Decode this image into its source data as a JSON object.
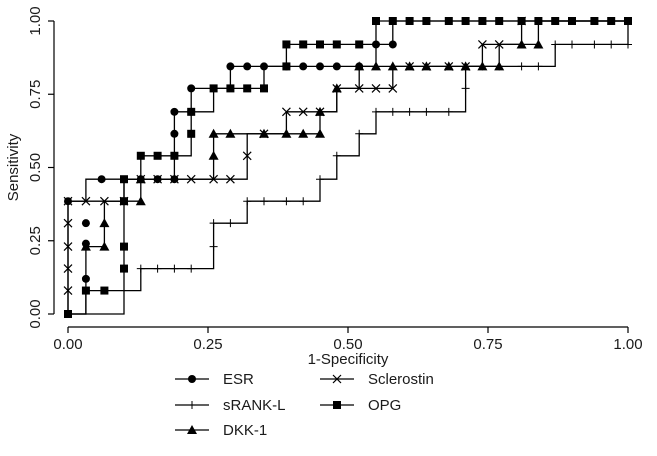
{
  "chart_data": {
    "type": "line",
    "title": "",
    "xlabel": "1-Specificity",
    "ylabel": "Sensitivity",
    "xlim": [
      0,
      1
    ],
    "ylim": [
      0,
      1
    ],
    "xticks": [
      0,
      0.25,
      0.5,
      0.75,
      1
    ],
    "xtick_labels": [
      "0.00",
      "0.25",
      "0.50",
      "0.75",
      "1.00"
    ],
    "yticks": [
      0,
      0.25,
      0.5,
      0.75,
      1
    ],
    "ytick_labels": [
      "0.00",
      "0.25",
      "0.50",
      "0.75",
      "1.00"
    ],
    "grid": false,
    "legend_position": "bottom",
    "series": [
      {
        "name": "ESR",
        "marker": "circle",
        "color": "#000000",
        "points": [
          [
            0,
            0
          ],
          [
            0,
            0.385
          ],
          [
            0.032,
            0.385
          ],
          [
            0.032,
            0.46
          ],
          [
            0.06,
            0.46
          ],
          [
            0.16,
            0.46
          ],
          [
            0.19,
            0.46
          ],
          [
            0.19,
            0.69
          ],
          [
            0.22,
            0.69
          ],
          [
            0.22,
            0.77
          ],
          [
            0.29,
            0.77
          ],
          [
            0.29,
            0.845
          ],
          [
            0.35,
            0.845
          ],
          [
            0.55,
            0.845
          ],
          [
            0.55,
            0.92
          ],
          [
            0.58,
            0.92
          ],
          [
            0.58,
            1.0
          ],
          [
            1.0,
            1.0
          ]
        ],
        "markers": [
          [
            0,
            0.385
          ],
          [
            0.032,
            0.12
          ],
          [
            0.032,
            0.24
          ],
          [
            0.032,
            0.31
          ],
          [
            0.06,
            0.46
          ],
          [
            0.13,
            0.46
          ],
          [
            0.16,
            0.46
          ],
          [
            0.19,
            0.46
          ],
          [
            0.19,
            0.615
          ],
          [
            0.19,
            0.69
          ],
          [
            0.22,
            0.69
          ],
          [
            0.22,
            0.77
          ],
          [
            0.29,
            0.845
          ],
          [
            0.32,
            0.845
          ],
          [
            0.35,
            0.845
          ],
          [
            0.39,
            0.845
          ],
          [
            0.42,
            0.845
          ],
          [
            0.45,
            0.845
          ],
          [
            0.48,
            0.845
          ],
          [
            0.52,
            0.845
          ],
          [
            0.55,
            0.92
          ],
          [
            0.58,
            0.92
          ]
        ]
      },
      {
        "name": "sRANK-L",
        "marker": "plus",
        "color": "#000000",
        "points": [
          [
            0,
            0
          ],
          [
            0.1,
            0
          ],
          [
            0.1,
            0.08
          ],
          [
            0.13,
            0.08
          ],
          [
            0.13,
            0.155
          ],
          [
            0.26,
            0.155
          ],
          [
            0.26,
            0.31
          ],
          [
            0.32,
            0.31
          ],
          [
            0.32,
            0.385
          ],
          [
            0.45,
            0.385
          ],
          [
            0.45,
            0.46
          ],
          [
            0.48,
            0.46
          ],
          [
            0.48,
            0.54
          ],
          [
            0.52,
            0.54
          ],
          [
            0.52,
            0.615
          ],
          [
            0.55,
            0.615
          ],
          [
            0.55,
            0.69
          ],
          [
            0.71,
            0.69
          ],
          [
            0.71,
            0.77
          ],
          [
            0.71,
            0.845
          ],
          [
            0.87,
            0.845
          ],
          [
            0.87,
            0.92
          ],
          [
            1.0,
            0.92
          ],
          [
            1.0,
            1.0
          ]
        ],
        "markers": [
          [
            0.1,
            0.08
          ],
          [
            0.13,
            0.155
          ],
          [
            0.16,
            0.155
          ],
          [
            0.19,
            0.155
          ],
          [
            0.22,
            0.155
          ],
          [
            0.26,
            0.23
          ],
          [
            0.26,
            0.31
          ],
          [
            0.29,
            0.31
          ],
          [
            0.32,
            0.385
          ],
          [
            0.35,
            0.385
          ],
          [
            0.39,
            0.385
          ],
          [
            0.42,
            0.385
          ],
          [
            0.45,
            0.46
          ],
          [
            0.48,
            0.54
          ],
          [
            0.52,
            0.615
          ],
          [
            0.55,
            0.69
          ],
          [
            0.58,
            0.69
          ],
          [
            0.61,
            0.69
          ],
          [
            0.64,
            0.69
          ],
          [
            0.68,
            0.69
          ],
          [
            0.71,
            0.77
          ],
          [
            0.74,
            0.845
          ],
          [
            0.77,
            0.845
          ],
          [
            0.81,
            0.845
          ],
          [
            0.84,
            0.845
          ],
          [
            0.87,
            0.92
          ],
          [
            0.9,
            0.92
          ],
          [
            0.94,
            0.92
          ],
          [
            0.97,
            0.92
          ],
          [
            1.0,
            0.92
          ]
        ]
      },
      {
        "name": "DKK-1",
        "marker": "triangle",
        "color": "#000000",
        "points": [
          [
            0,
            0
          ],
          [
            0.032,
            0
          ],
          [
            0.032,
            0.23
          ],
          [
            0.065,
            0.23
          ],
          [
            0.065,
            0.31
          ],
          [
            0.065,
            0.385
          ],
          [
            0.13,
            0.385
          ],
          [
            0.13,
            0.46
          ],
          [
            0.26,
            0.46
          ],
          [
            0.26,
            0.615
          ],
          [
            0.45,
            0.615
          ],
          [
            0.45,
            0.69
          ],
          [
            0.48,
            0.69
          ],
          [
            0.48,
            0.77
          ],
          [
            0.52,
            0.77
          ],
          [
            0.52,
            0.845
          ],
          [
            0.77,
            0.845
          ],
          [
            0.77,
            0.92
          ],
          [
            0.84,
            0.92
          ],
          [
            0.84,
            1.0
          ],
          [
            1.0,
            1.0
          ]
        ],
        "markers": [
          [
            0.032,
            0.23
          ],
          [
            0.065,
            0.23
          ],
          [
            0.065,
            0.31
          ],
          [
            0.13,
            0.385
          ],
          [
            0.13,
            0.46
          ],
          [
            0.26,
            0.54
          ],
          [
            0.26,
            0.615
          ],
          [
            0.29,
            0.615
          ],
          [
            0.35,
            0.615
          ],
          [
            0.39,
            0.615
          ],
          [
            0.42,
            0.615
          ],
          [
            0.45,
            0.615
          ],
          [
            0.45,
            0.69
          ],
          [
            0.48,
            0.77
          ],
          [
            0.52,
            0.845
          ],
          [
            0.55,
            0.845
          ],
          [
            0.58,
            0.845
          ],
          [
            0.61,
            0.845
          ],
          [
            0.64,
            0.845
          ],
          [
            0.68,
            0.845
          ],
          [
            0.71,
            0.845
          ],
          [
            0.74,
            0.845
          ],
          [
            0.77,
            0.845
          ],
          [
            0.81,
            0.92
          ],
          [
            0.84,
            0.92
          ]
        ]
      },
      {
        "name": "Sclerostin",
        "marker": "x",
        "color": "#000000",
        "points": [
          [
            0,
            0
          ],
          [
            0,
            0.385
          ],
          [
            0.1,
            0.385
          ],
          [
            0.1,
            0.46
          ],
          [
            0.26,
            0.46
          ],
          [
            0.32,
            0.46
          ],
          [
            0.32,
            0.54
          ],
          [
            0.32,
            0.615
          ],
          [
            0.39,
            0.615
          ],
          [
            0.39,
            0.69
          ],
          [
            0.48,
            0.69
          ],
          [
            0.48,
            0.77
          ],
          [
            0.58,
            0.77
          ],
          [
            0.58,
            0.845
          ],
          [
            0.74,
            0.845
          ],
          [
            0.74,
            0.92
          ],
          [
            0.81,
            0.92
          ],
          [
            0.81,
            1.0
          ],
          [
            1.0,
            1.0
          ]
        ],
        "markers": [
          [
            0,
            0.08
          ],
          [
            0,
            0.155
          ],
          [
            0,
            0.23
          ],
          [
            0,
            0.31
          ],
          [
            0,
            0.385
          ],
          [
            0.032,
            0.385
          ],
          [
            0.065,
            0.385
          ],
          [
            0.1,
            0.385
          ],
          [
            0.13,
            0.46
          ],
          [
            0.16,
            0.46
          ],
          [
            0.19,
            0.46
          ],
          [
            0.22,
            0.46
          ],
          [
            0.26,
            0.46
          ],
          [
            0.29,
            0.46
          ],
          [
            0.32,
            0.54
          ],
          [
            0.35,
            0.615
          ],
          [
            0.39,
            0.69
          ],
          [
            0.42,
            0.69
          ],
          [
            0.45,
            0.69
          ],
          [
            0.48,
            0.77
          ],
          [
            0.52,
            0.77
          ],
          [
            0.55,
            0.77
          ],
          [
            0.58,
            0.77
          ],
          [
            0.61,
            0.845
          ],
          [
            0.64,
            0.845
          ],
          [
            0.68,
            0.845
          ],
          [
            0.71,
            0.845
          ],
          [
            0.74,
            0.92
          ],
          [
            0.77,
            0.92
          ],
          [
            0.81,
            1.0
          ]
        ]
      },
      {
        "name": "OPG",
        "marker": "square",
        "color": "#000000",
        "points": [
          [
            0,
            0
          ],
          [
            0.032,
            0
          ],
          [
            0.032,
            0.08
          ],
          [
            0.1,
            0.08
          ],
          [
            0.1,
            0.155
          ],
          [
            0.1,
            0.385
          ],
          [
            0.1,
            0.46
          ],
          [
            0.13,
            0.46
          ],
          [
            0.13,
            0.54
          ],
          [
            0.16,
            0.54
          ],
          [
            0.19,
            0.54
          ],
          [
            0.22,
            0.54
          ],
          [
            0.22,
            0.69
          ],
          [
            0.26,
            0.69
          ],
          [
            0.26,
            0.77
          ],
          [
            0.35,
            0.77
          ],
          [
            0.35,
            0.845
          ],
          [
            0.39,
            0.845
          ],
          [
            0.39,
            0.92
          ],
          [
            0.55,
            0.92
          ],
          [
            0.55,
            1.0
          ],
          [
            1.0,
            1.0
          ]
        ],
        "markers": [
          [
            0,
            0
          ],
          [
            0.032,
            0.08
          ],
          [
            0.065,
            0.08
          ],
          [
            0.1,
            0.155
          ],
          [
            0.1,
            0.23
          ],
          [
            0.1,
            0.385
          ],
          [
            0.1,
            0.46
          ],
          [
            0.13,
            0.54
          ],
          [
            0.16,
            0.54
          ],
          [
            0.19,
            0.54
          ],
          [
            0.22,
            0.615
          ],
          [
            0.22,
            0.69
          ],
          [
            0.26,
            0.77
          ],
          [
            0.29,
            0.77
          ],
          [
            0.32,
            0.77
          ],
          [
            0.35,
            0.77
          ],
          [
            0.39,
            0.845
          ],
          [
            0.39,
            0.92
          ],
          [
            0.42,
            0.92
          ],
          [
            0.45,
            0.92
          ],
          [
            0.48,
            0.92
          ],
          [
            0.52,
            0.92
          ],
          [
            0.55,
            1.0
          ],
          [
            0.58,
            1.0
          ],
          [
            0.61,
            1.0
          ],
          [
            0.64,
            1.0
          ],
          [
            0.68,
            1.0
          ],
          [
            0.71,
            1.0
          ],
          [
            0.74,
            1.0
          ],
          [
            0.77,
            1.0
          ],
          [
            0.81,
            1.0
          ],
          [
            0.84,
            1.0
          ],
          [
            0.87,
            1.0
          ],
          [
            0.9,
            1.0
          ],
          [
            0.94,
            1.0
          ],
          [
            0.97,
            1.0
          ],
          [
            1.0,
            1.0
          ]
        ]
      }
    ]
  }
}
